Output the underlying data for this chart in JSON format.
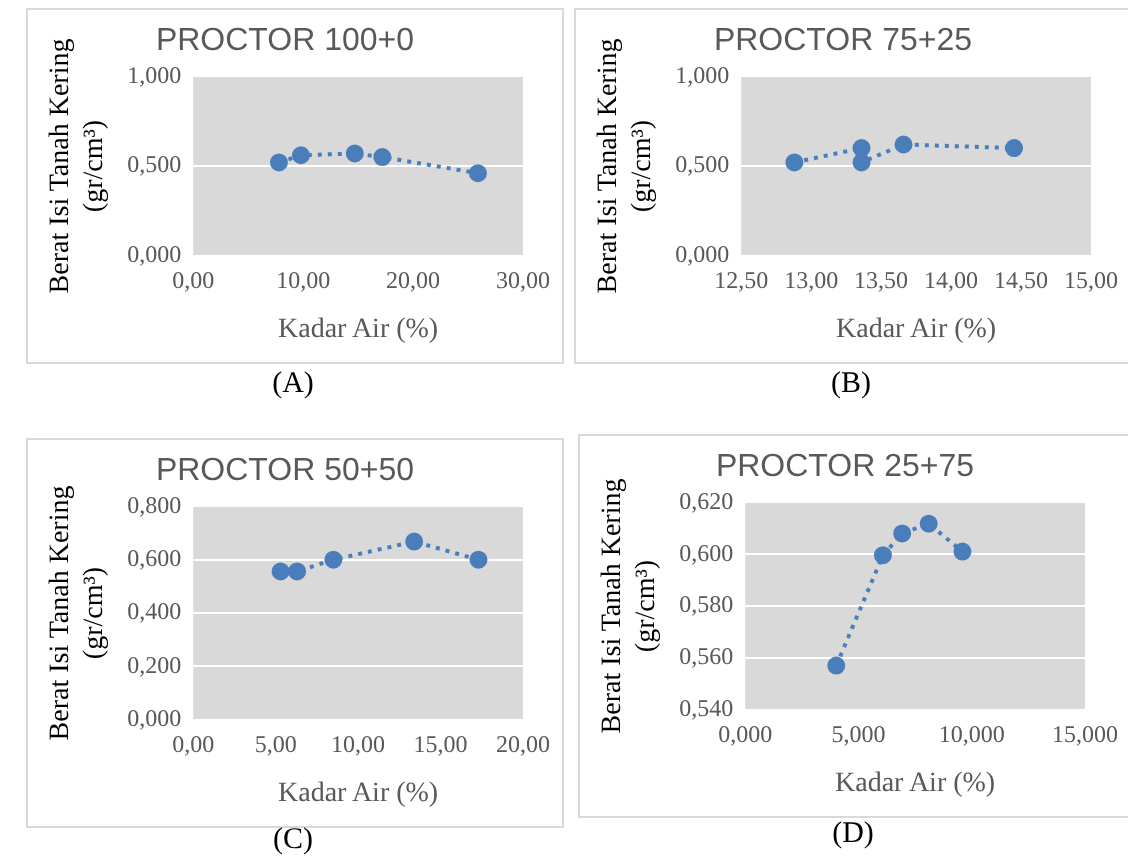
{
  "chart_data": [
    {
      "type": "scatter",
      "title": "PROCTOR 100+0",
      "xlabel": "Kadar Air (%)",
      "ylabel": "Berat Isi Tanah Kering (gr/cm³)",
      "annotations": [
        "(A)"
      ],
      "marker": "circle",
      "grid": "y",
      "legend": false,
      "series": [
        {
          "type": "line",
          "line_style": "dotted",
          "marker": "none",
          "color": "#4a7ebb",
          "x": [
            7.8,
            9.8,
            14.7,
            17.2,
            25.9
          ],
          "values": [
            0.52,
            0.56,
            0.57,
            0.55,
            0.46
          ]
        },
        {
          "color": "#4a7ebb",
          "x": [
            7.8,
            9.8,
            14.7,
            17.2,
            25.9
          ],
          "values": [
            0.52,
            0.56,
            0.57,
            0.55,
            0.46
          ]
        }
      ],
      "xlim": [
        0,
        30
      ],
      "xticks": [
        {
          "value": 0,
          "label": "0,00"
        },
        {
          "value": 10,
          "label": "10,00"
        },
        {
          "value": 20,
          "label": "20,00"
        },
        {
          "value": 30,
          "label": "30,00"
        }
      ],
      "ylim": [
        0,
        1
      ],
      "yticks": [
        {
          "value": 0,
          "label": "0,000"
        },
        {
          "value": 0.5,
          "label": "0,500"
        },
        {
          "value": 1,
          "label": "1,000"
        }
      ]
    },
    {
      "type": "scatter",
      "title": "PROCTOR 75+25",
      "xlabel": "Kadar Air (%)",
      "ylabel": "Berat Isi Tanah Kering (gr/cm³)",
      "annotations": [
        "(B)"
      ],
      "marker": "circle",
      "grid": "y",
      "legend": false,
      "series": [
        {
          "type": "line",
          "line_style": "dotted",
          "marker": "none",
          "color": "#4a7ebb",
          "x": [
            12.88,
            13.36,
            13.36,
            13.66,
            14.45
          ],
          "values": [
            0.52,
            0.6,
            0.52,
            0.62,
            0.6
          ]
        },
        {
          "color": "#4a7ebb",
          "x": [
            12.88,
            13.36,
            13.36,
            13.66,
            14.45
          ],
          "values": [
            0.52,
            0.6,
            0.52,
            0.62,
            0.6
          ]
        }
      ],
      "xlim": [
        12.5,
        15
      ],
      "xticks": [
        {
          "value": 12.5,
          "label": "12,50"
        },
        {
          "value": 13,
          "label": "13,00"
        },
        {
          "value": 13.5,
          "label": "13,50"
        },
        {
          "value": 14,
          "label": "14,00"
        },
        {
          "value": 14.5,
          "label": "14,50"
        },
        {
          "value": 15,
          "label": "15,00"
        }
      ],
      "ylim": [
        0,
        1
      ],
      "yticks": [
        {
          "value": 0,
          "label": "0,000"
        },
        {
          "value": 0.5,
          "label": "0,500"
        },
        {
          "value": 1,
          "label": "1,000"
        }
      ]
    },
    {
      "type": "scatter",
      "title": "PROCTOR 50+50",
      "xlabel": "Kadar Air (%)",
      "ylabel": "Berat Isi Tanah Kering (gr/cm³)",
      "annotations": [
        "(C)"
      ],
      "marker": "circle",
      "grid": "y",
      "legend": false,
      "series": [
        {
          "type": "line",
          "line_style": "dotted",
          "marker": "none",
          "color": "#4a7ebb",
          "x": [
            5.3,
            6.3,
            8.5,
            13.4,
            17.3
          ],
          "values": [
            0.556,
            0.556,
            0.6,
            0.668,
            0.6
          ]
        },
        {
          "color": "#4a7ebb",
          "x": [
            5.3,
            6.3,
            8.5,
            13.4,
            17.3
          ],
          "values": [
            0.556,
            0.556,
            0.6,
            0.668,
            0.6
          ]
        }
      ],
      "xlim": [
        0,
        20
      ],
      "xticks": [
        {
          "value": 0,
          "label": "0,00"
        },
        {
          "value": 5,
          "label": "5,00"
        },
        {
          "value": 10,
          "label": "10,00"
        },
        {
          "value": 15,
          "label": "15,00"
        },
        {
          "value": 20,
          "label": "20,00"
        }
      ],
      "ylim": [
        0,
        0.8
      ],
      "yticks": [
        {
          "value": 0,
          "label": "0,000"
        },
        {
          "value": 0.2,
          "label": "0,200"
        },
        {
          "value": 0.4,
          "label": "0,400"
        },
        {
          "value": 0.6,
          "label": "0,600"
        },
        {
          "value": 0.8,
          "label": "0,800"
        }
      ]
    },
    {
      "type": "scatter",
      "title": "PROCTOR 25+75",
      "xlabel": "Kadar Air (%)",
      "ylabel": "Berat Isi Tanah Kering (gr/cm³)",
      "annotations": [
        "(D)"
      ],
      "marker": "circle",
      "grid": "y",
      "legend": false,
      "series": [
        {
          "type": "line",
          "line_style": "dotted",
          "marker": "none",
          "color": "#4a7ebb",
          "x": [
            4.02,
            6.08,
            6.93,
            8.1,
            9.59
          ],
          "values": [
            0.557,
            0.5996,
            0.608,
            0.6118,
            0.601
          ]
        },
        {
          "color": "#4a7ebb",
          "x": [
            4.02,
            6.08,
            6.93,
            8.1,
            9.59
          ],
          "values": [
            0.557,
            0.5996,
            0.608,
            0.6118,
            0.601
          ]
        }
      ],
      "xlim": [
        0,
        15
      ],
      "xticks": [
        {
          "value": 0,
          "label": "0,000"
        },
        {
          "value": 5,
          "label": "5,000"
        },
        {
          "value": 10,
          "label": "10,000"
        },
        {
          "value": 15,
          "label": "15,000"
        }
      ],
      "ylim": [
        0.54,
        0.62
      ],
      "yticks": [
        {
          "value": 0.54,
          "label": "0,540"
        },
        {
          "value": 0.56,
          "label": "0,560"
        },
        {
          "value": 0.58,
          "label": "0,580"
        },
        {
          "value": 0.6,
          "label": "0,600"
        },
        {
          "value": 0.62,
          "label": "0,620"
        }
      ]
    }
  ]
}
